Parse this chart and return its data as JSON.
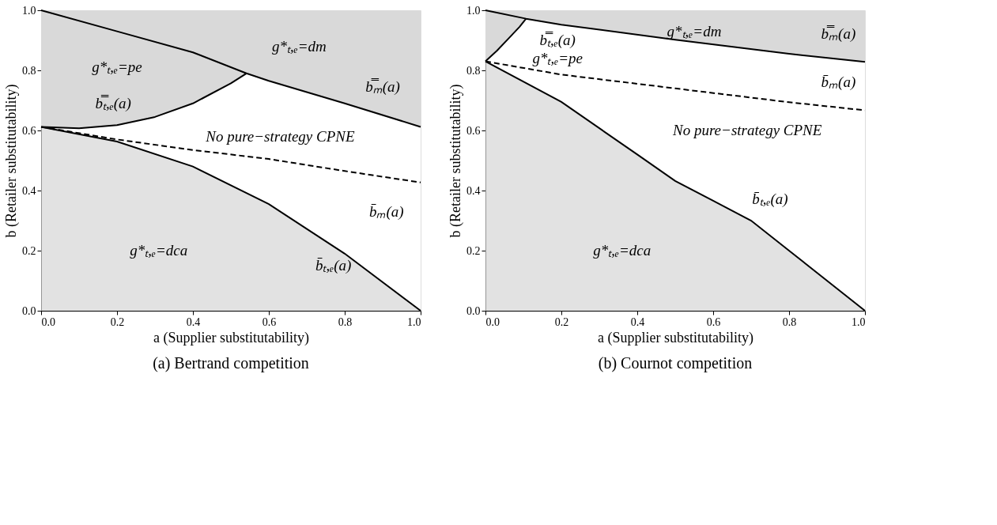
{
  "chart_data": [
    {
      "type": "line",
      "title": "(a) Bertrand competition",
      "xlabel": "a (Supplier substitutability)",
      "ylabel": "b (Retailer substitutability)",
      "xlim": [
        0,
        1
      ],
      "ylim": [
        0,
        1
      ],
      "xticks": [
        {
          "value": 0,
          "label": "0.0"
        },
        {
          "value": 0.2,
          "label": "0.2"
        },
        {
          "value": 0.4,
          "label": "0.4"
        },
        {
          "value": 0.6,
          "label": "0.6"
        },
        {
          "value": 0.8,
          "label": "0.8"
        },
        {
          "value": 1,
          "label": "1.0"
        }
      ],
      "yticks": [
        {
          "value": 0,
          "label": "0.0"
        },
        {
          "value": 0.2,
          "label": "0.2"
        },
        {
          "value": 0.4,
          "label": "0.4"
        },
        {
          "value": 0.6,
          "label": "0.6"
        },
        {
          "value": 0.8,
          "label": "0.8"
        },
        {
          "value": 1,
          "label": "1.0"
        }
      ],
      "grid": false,
      "series": [
        {
          "color": "#000000",
          "line_style": "solid",
          "x": [
            0,
            0.2,
            0.4,
            0.541,
            0.6,
            0.8,
            1
          ],
          "values": [
            1,
            0.93,
            0.86,
            0.79,
            0.765,
            0.69,
            0.612
          ],
          "lower": [
            1,
            0.93,
            0.86,
            0.79,
            0.765,
            0.69,
            0.612
          ],
          "upper": [
            1,
            1,
            1,
            1,
            1,
            1,
            1
          ]
        },
        {
          "color": "#000000",
          "line_style": "solid",
          "x": [
            0,
            0.1,
            0.2,
            0.3,
            0.4,
            0.5,
            0.541
          ],
          "values": [
            0.612,
            0.607,
            0.618,
            0.645,
            0.69,
            0.757,
            0.79
          ],
          "lower": [
            0.612,
            0.607,
            0.618,
            0.645,
            0.69,
            0.757,
            0.79
          ],
          "upper": [
            1,
            0.965,
            0.93,
            0.895,
            0.86,
            0.81,
            0.79
          ]
        },
        {
          "color": "#000000",
          "line_style": "dashed",
          "x": [
            0,
            0.2,
            0.4,
            0.6,
            0.8,
            1
          ],
          "values": [
            0.612,
            0.57,
            0.535,
            0.505,
            0.465,
            0.427
          ]
        },
        {
          "type": "area",
          "color": "#d6d6d6",
          "x": [
            0,
            0.2,
            0.4,
            0.6,
            0.8,
            1
          ],
          "values": [
            0.612,
            0.563,
            0.48,
            0.355,
            0.19,
            0
          ]
        }
      ],
      "annotations": [
        "g*ₜ,ₑ=dm",
        "g*ₜ,ₑ=pe",
        "b̿ₜ,ₑ(a)",
        "b̿ₘ(a)",
        "No pure−strategy CPNE",
        "b̄ₘ(a)",
        "g*ₜ,ₑ=dca",
        "b̄ₜ,ₑ(a)"
      ]
    },
    {
      "type": "line",
      "title": "(b) Cournot competition",
      "xlabel": "a (Supplier substitutability)",
      "ylabel": "b (Retailer substitutability)",
      "xlim": [
        0,
        1
      ],
      "ylim": [
        0,
        1
      ],
      "xticks": [
        {
          "value": 0,
          "label": "0.0"
        },
        {
          "value": 0.2,
          "label": "0.2"
        },
        {
          "value": 0.4,
          "label": "0.4"
        },
        {
          "value": 0.6,
          "label": "0.6"
        },
        {
          "value": 0.8,
          "label": "0.8"
        },
        {
          "value": 1,
          "label": "1.0"
        }
      ],
      "yticks": [
        {
          "value": 0,
          "label": "0.0"
        },
        {
          "value": 0.2,
          "label": "0.2"
        },
        {
          "value": 0.4,
          "label": "0.4"
        },
        {
          "value": 0.6,
          "label": "0.6"
        },
        {
          "value": 0.8,
          "label": "0.8"
        },
        {
          "value": 1,
          "label": "1.0"
        }
      ],
      "grid": false,
      "series": [
        {
          "color": "#000000",
          "line_style": "solid",
          "x": [
            0,
            0.107,
            0.2,
            0.5,
            0.8,
            1
          ],
          "values": [
            1,
            0.972,
            0.952,
            0.902,
            0.855,
            0.828
          ],
          "lower": [
            1,
            0.972,
            0.952,
            0.902,
            0.855,
            0.828
          ],
          "upper": [
            1,
            1,
            1,
            1,
            1,
            1
          ]
        },
        {
          "color": "#000000",
          "line_style": "solid",
          "x": [
            0,
            0.03,
            0.06,
            0.09,
            0.107
          ],
          "values": [
            0.83,
            0.865,
            0.905,
            0.945,
            0.972
          ],
          "lower": [
            0.83,
            0.865,
            0.905,
            0.945,
            0.972
          ],
          "upper": [
            1,
            0.992,
            0.984,
            0.976,
            0.972
          ]
        },
        {
          "color": "#000000",
          "line_style": "dashed",
          "x": [
            0,
            0.2,
            0.5,
            0.8,
            1
          ],
          "values": [
            0.83,
            0.786,
            0.74,
            0.694,
            0.667
          ]
        },
        {
          "type": "area",
          "color": "#d6d6d6",
          "x": [
            0,
            0.2,
            0.4,
            0.5,
            0.6,
            0.7,
            0.8,
            1
          ],
          "values": [
            0.83,
            0.695,
            0.52,
            0.432,
            0.366,
            0.3,
            0.2,
            0
          ]
        }
      ],
      "annotations": [
        "g*ₜ,ₑ=dm",
        "b̿ₘ(a)",
        "b̿ₜ,ₑ(a)",
        "g*ₜ,ₑ=pe",
        "b̄ₘ(a)",
        "No pure−strategy CPNE",
        "b̄ₜ,ₑ(a)",
        "g*ₜ,ₑ=dca"
      ]
    }
  ]
}
